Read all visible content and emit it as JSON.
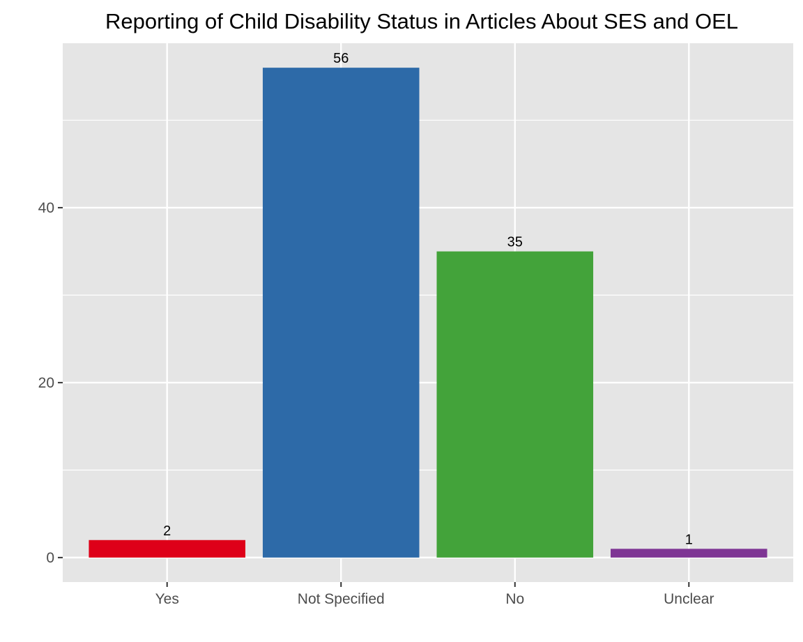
{
  "chart_data": {
    "type": "bar",
    "title": "Reporting of Child Disability Status in Articles About SES and OEL",
    "xlabel": "",
    "ylabel": "",
    "categories": [
      "Yes",
      "Not Specified",
      "No",
      "Unclear"
    ],
    "values": [
      2,
      56,
      35,
      1
    ],
    "data_labels": [
      "2",
      "56",
      "35",
      "1"
    ],
    "colors": [
      "#de0019",
      "#2d6aa8",
      "#43a33a",
      "#7e3594"
    ],
    "y_ticks": [
      0,
      20,
      40
    ],
    "y_tick_labels": [
      "0",
      "20",
      "40"
    ],
    "ylim": [
      -2.8,
      58.8
    ],
    "grid": true,
    "legend": "none",
    "panel_background": "#e5e5e5"
  }
}
